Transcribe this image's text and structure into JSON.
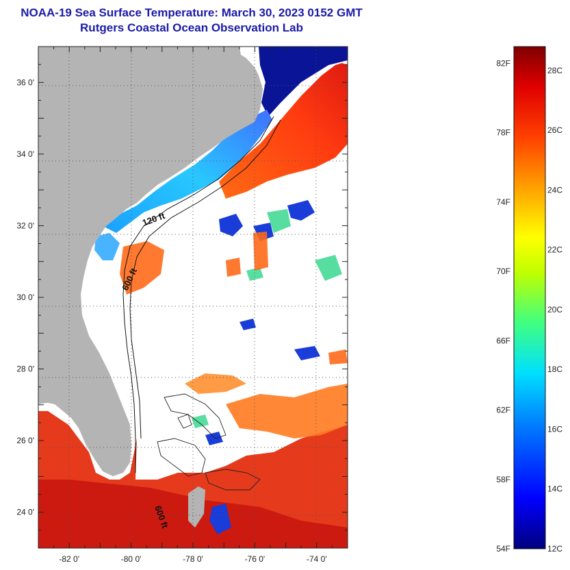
{
  "header": {
    "title": "NOAA-19 Sea Surface Temperature:  March 30, 2023 0152 GMT",
    "subtitle": "Rutgers Coastal Ocean Observation Lab"
  },
  "map": {
    "lon_range": [
      -83,
      -73
    ],
    "lat_range": [
      23,
      37
    ],
    "lon_ticks": [
      {
        "value": -82,
        "label": "-82 0'"
      },
      {
        "value": -80,
        "label": "-80 0'"
      },
      {
        "value": -78,
        "label": "-78 0'"
      },
      {
        "value": -76,
        "label": "-76 0'"
      },
      {
        "value": -74,
        "label": "-74 0'"
      }
    ],
    "lat_ticks": [
      {
        "value": 36,
        "label": "36 0'"
      },
      {
        "value": 34,
        "label": "34 0'"
      },
      {
        "value": 32,
        "label": "32 0'"
      },
      {
        "value": 30,
        "label": "30 0'"
      },
      {
        "value": 28,
        "label": "28 0'"
      },
      {
        "value": 26,
        "label": "26 0'"
      },
      {
        "value": 24,
        "label": "24 0'"
      }
    ],
    "grid": "dotted",
    "contour_labels": [
      {
        "text": "120 ft",
        "rotation": -20
      },
      {
        "text": "600 ft",
        "rotation": -65
      },
      {
        "text": "600 ft",
        "rotation": 70
      }
    ],
    "colors": {
      "land": "#b4b4b4",
      "cloud": "#ffffff",
      "warm": "#e8321a",
      "hot": "#d61a12",
      "cool": "#1e78e6",
      "cold": "#0a1496"
    }
  },
  "colorbar": {
    "fahrenheit_labels": [
      "54F",
      "58F",
      "62F",
      "66F",
      "70F",
      "74F",
      "78F",
      "82F"
    ],
    "celsius_labels": [
      "12C",
      "14C",
      "16C",
      "18C",
      "20C",
      "22C",
      "24C",
      "26C",
      "28C"
    ],
    "stops": [
      "#00007f",
      "#0000ff",
      "#0080ff",
      "#00e0ff",
      "#40ff80",
      "#c0ff00",
      "#ffff00",
      "#ffa000",
      "#ff4000",
      "#e00000",
      "#7f0000"
    ]
  }
}
